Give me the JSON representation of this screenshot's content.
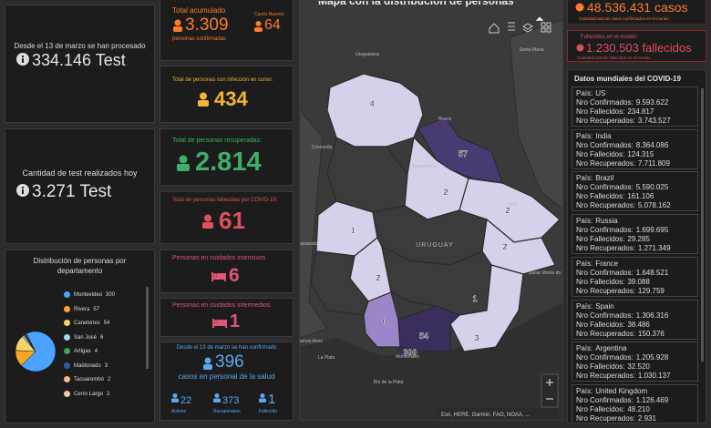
{
  "left": {
    "processed": {
      "label": "Desde el 13 de marzo se han procesado",
      "value": "334.146 Test"
    },
    "today": {
      "label": "Cantidad de test realizados hoy",
      "value": "3.271 Test"
    },
    "pie": {
      "title": "Distribución de personas por departamento",
      "items": [
        {
          "name": "Montevideo",
          "value": 300,
          "color": "#4aa3ff"
        },
        {
          "name": "Rivera",
          "value": 57,
          "color": "#f5a623"
        },
        {
          "name": "Canelones",
          "value": 54,
          "color": "#f3d36b"
        },
        {
          "name": "San José",
          "value": 6,
          "color": "#a9d2ff"
        },
        {
          "name": "Artigas",
          "value": 4,
          "color": "#3aa655"
        },
        {
          "name": "Maldonado",
          "value": 3,
          "color": "#2d5fa8"
        },
        {
          "name": "Tacuarembó",
          "value": 2,
          "color": "#f5b88c"
        },
        {
          "name": "Cerro Largo",
          "value": 2,
          "color": "#e9cfa6"
        }
      ]
    }
  },
  "middle": {
    "total": {
      "label": "Total acumulado",
      "value": "3.309",
      "sub": "personas confirmadas",
      "new_label": "Casos Nuevos",
      "new_value": "64"
    },
    "active": {
      "label": "Total de personas con infección en curso:",
      "value": "434"
    },
    "recovered": {
      "label": "Total de personas recuperadas:",
      "value": "2.814"
    },
    "deceased": {
      "label": "Total de personas fallecidas por COVID-19:",
      "value": "61"
    },
    "icu": {
      "label": "Personas en cuidados intensivos",
      "value": "6"
    },
    "intermediate": {
      "label": "Personas en cuidados intermedios",
      "value": "1"
    },
    "health": {
      "label": "Desde el 13 de marzo se han confirmado",
      "value": "396",
      "sub": "casos en personal de la salud",
      "items": [
        {
          "value": "22",
          "label": "Activos"
        },
        {
          "value": "373",
          "label": "Recuperados"
        },
        {
          "value": "1",
          "label": "Fallecido"
        }
      ]
    }
  },
  "map": {
    "title": "Mapa con la distribución de personas",
    "places": [
      "Uruguaiana",
      "Santa Maria",
      "Rivera",
      "Concordia",
      "Tacuarembó",
      "Melo",
      "Paysandú",
      "URUGUAY",
      "Santa Vitoria do Palmar",
      "Buenos Aires",
      "La Plata",
      "Río de la Plata",
      "Montevideo"
    ],
    "counts": [
      "4",
      "57",
      "2",
      "2",
      "1",
      "2",
      "2",
      "1",
      "6",
      "54",
      "3",
      "300"
    ],
    "attribution": "Esri, HERE, Garmin, FAO, NOAA, ..."
  },
  "right": {
    "world_cases": {
      "value": "48.536.431 casos",
      "sub": "Cantidad total de casos confirmados en el mundo"
    },
    "world_deaths": {
      "label": "Fallecidos en el mundo",
      "value": "1.230.503 fallecidos",
      "sub": "Cantidad total de fallecidos en el mundo"
    },
    "list": {
      "title": "Datos mundiales del COVID-19",
      "fields": [
        "País:",
        "Nro Confirmados:",
        "Nro Fallecidos:",
        "Nro Recuperados:"
      ],
      "rows": [
        [
          "US",
          "9.593.622",
          "234.817",
          "3.743.527"
        ],
        [
          "India",
          "8.364.086",
          "124.315",
          "7.711.809"
        ],
        [
          "Brazil",
          "5.590.025",
          "161.106",
          "5.078.162"
        ],
        [
          "Russia",
          "1.699.695",
          "29.285",
          "1.271.349"
        ],
        [
          "France",
          "1.648.521",
          "39.088",
          "129.759"
        ],
        [
          "Spain",
          "1.306.316",
          "38.486",
          "150.376"
        ],
        [
          "Argentina",
          "1.205.928",
          "32.520",
          "1.030.137"
        ],
        [
          "United Kingdom",
          "1.126.469",
          "48.210",
          "2.931"
        ]
      ]
    }
  }
}
